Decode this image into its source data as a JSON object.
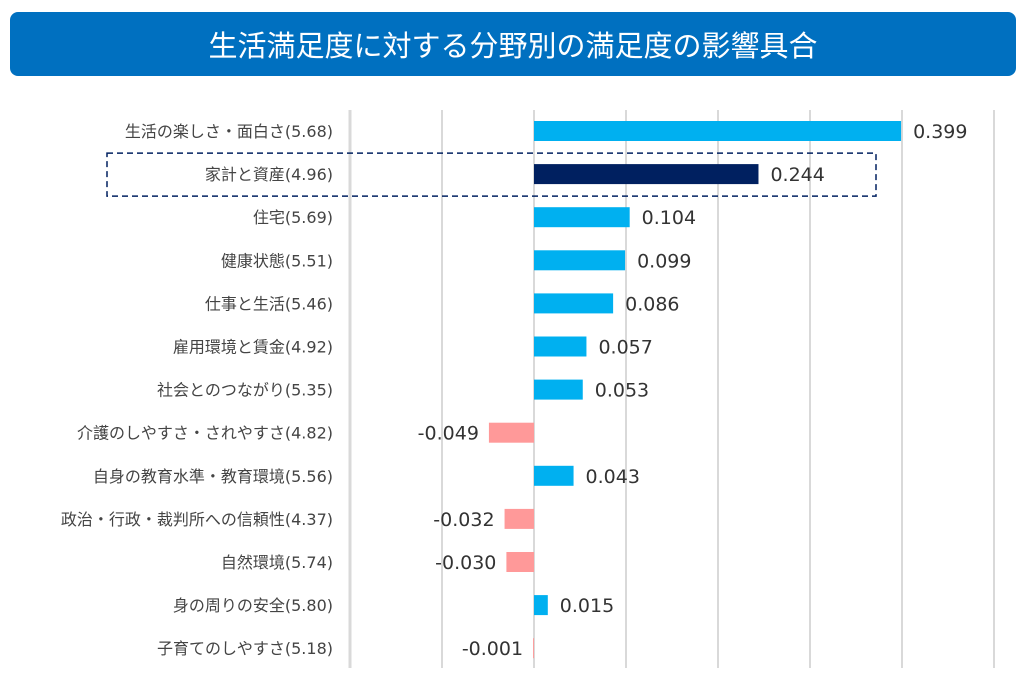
{
  "chart_data": {
    "type": "bar",
    "orientation": "horizontal",
    "title": "生活満足度に対する分野別の満足度の影響具合",
    "categories": [
      "生活の楽しさ・面白さ(5.68)",
      "家計と資産(4.96)",
      "住宅(5.69)",
      "健康状態(5.51)",
      "仕事と生活(5.46)",
      "雇用環境と賃金(4.92)",
      "社会とのつながり(5.35)",
      "介護のしやすさ・されやすさ(4.82)",
      "自身の教育水準・教育環境(5.56)",
      "政治・行政・裁判所への信頼性(4.37)",
      "自然環境(5.74)",
      "身の周りの安全(5.80)",
      "子育てのしやすさ(5.18)"
    ],
    "values": [
      0.399,
      0.244,
      0.104,
      0.099,
      0.086,
      0.057,
      0.053,
      -0.049,
      0.043,
      -0.032,
      -0.03,
      0.015,
      -0.001
    ],
    "value_labels": [
      "0.399",
      "0.244",
      "0.104",
      "0.099",
      "0.086",
      "0.057",
      "0.053",
      "-0.049",
      "0.043",
      "-0.032",
      "-0.030",
      "0.015",
      "-0.001"
    ],
    "highlighted_index": 1,
    "xlim": [
      -0.2,
      0.5
    ],
    "grid_step": 0.1,
    "grid": true,
    "xlabel": "",
    "ylabel": "",
    "colors": {
      "positive": "#00b0f0",
      "negative": "#ff9999",
      "highlight": "#002060",
      "title_bg": "#0070c0",
      "grid": "#d9d9d9"
    }
  }
}
